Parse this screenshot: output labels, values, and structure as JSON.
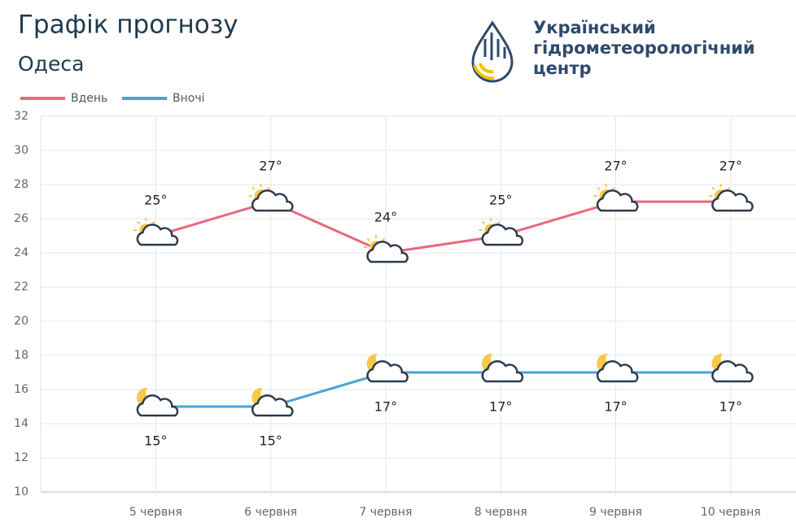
{
  "chart_data": {
    "type": "line",
    "title": "Графік прогнозу",
    "subtitle": "Одеса",
    "logo_lines": [
      "Український",
      "гідрометеорологічний",
      "центр"
    ],
    "categories": [
      "5 червня",
      "6 червня",
      "7 червня",
      "8 червня",
      "9 червня",
      "10 червня"
    ],
    "series": [
      {
        "name": "Вдень",
        "color": "#e8697f",
        "values": [
          25,
          27,
          24,
          25,
          27,
          27
        ],
        "value_labels": [
          "25°",
          "27°",
          "24°",
          "25°",
          "27°",
          "27°"
        ]
      },
      {
        "name": "Вночі",
        "color": "#4aa3d6",
        "values": [
          15,
          15,
          17,
          17,
          17,
          17
        ],
        "value_labels": [
          "15°",
          "15°",
          "17°",
          "17°",
          "17°",
          "17°"
        ]
      }
    ],
    "ylim": [
      10,
      32
    ],
    "yticks": [
      10,
      12,
      14,
      16,
      18,
      20,
      22,
      24,
      26,
      28,
      30,
      32
    ],
    "grid": true
  }
}
